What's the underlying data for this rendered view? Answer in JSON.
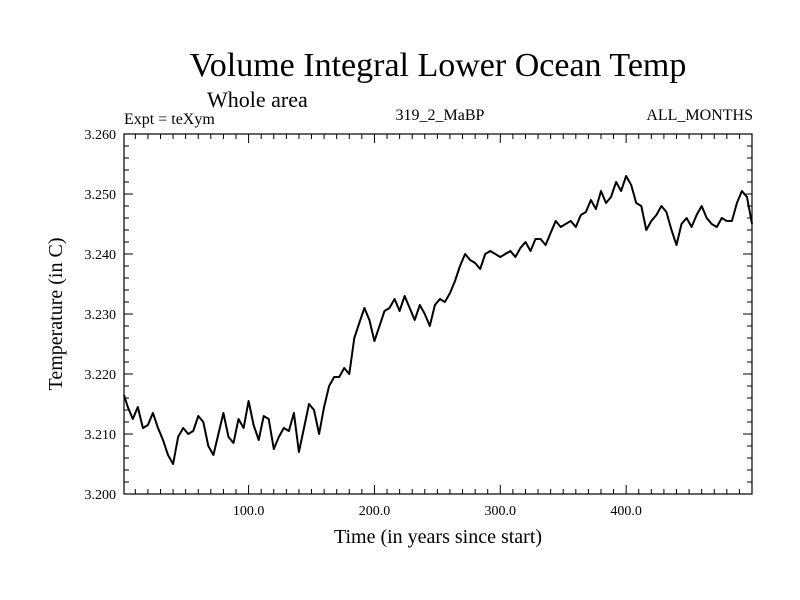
{
  "chart_data": {
    "type": "line",
    "title": "Volume Integral Lower Ocean Temp",
    "subtitle": "Whole area",
    "info_left": "Expt = teXym",
    "info_center": "319_2_MaBP",
    "info_right": "ALL_MONTHS",
    "xlabel": "Time (in years since start)",
    "ylabel": "Temperature (in C)",
    "xlim": [
      1,
      500
    ],
    "ylim": [
      3.2,
      3.26
    ],
    "xticks": [
      100,
      200,
      300,
      400
    ],
    "xtick_labels": [
      "100.0",
      "200.0",
      "300.0",
      "400.0"
    ],
    "yticks": [
      3.2,
      3.21,
      3.22,
      3.23,
      3.24,
      3.25,
      3.26
    ],
    "ytick_labels": [
      "3.200",
      "3.210",
      "3.220",
      "3.230",
      "3.240",
      "3.250",
      "3.260"
    ],
    "grid": false,
    "line_color": "#000000",
    "series": [
      {
        "x": [
          1,
          4,
          8,
          12,
          16,
          20,
          24,
          28,
          32,
          36,
          40,
          44,
          48,
          52,
          56,
          60,
          64,
          68,
          72,
          76,
          80,
          84,
          88,
          92,
          96,
          100,
          104,
          108,
          112,
          116,
          120,
          124,
          128,
          132,
          136,
          140,
          144,
          148,
          152,
          156,
          160,
          164,
          168,
          172,
          176,
          180,
          184,
          188,
          192,
          196,
          200,
          204,
          208,
          212,
          216,
          220,
          224,
          228,
          232,
          236,
          240,
          244,
          248,
          252,
          256,
          260,
          264,
          268,
          272,
          276,
          280,
          284,
          288,
          292,
          296,
          300,
          304,
          308,
          312,
          316,
          320,
          324,
          328,
          332,
          336,
          340,
          344,
          348,
          352,
          356,
          360,
          364,
          368,
          372,
          376,
          380,
          384,
          388,
          392,
          396,
          400,
          404,
          408,
          412,
          416,
          420,
          424,
          428,
          432,
          436,
          440,
          444,
          448,
          452,
          456,
          460,
          464,
          468,
          472,
          476,
          480,
          484,
          488,
          492,
          496,
          500
        ],
        "values": [
          3.2165,
          3.2145,
          3.2125,
          3.2145,
          3.211,
          3.2115,
          3.2135,
          3.211,
          3.209,
          3.2065,
          3.205,
          3.2095,
          3.211,
          3.21,
          3.2105,
          3.213,
          3.212,
          3.208,
          3.2065,
          3.21,
          3.2135,
          3.2095,
          3.2085,
          3.2125,
          3.211,
          3.2155,
          3.2115,
          3.209,
          3.213,
          3.2125,
          3.2075,
          3.2095,
          3.211,
          3.2105,
          3.2135,
          3.207,
          3.211,
          3.215,
          3.214,
          3.21,
          3.2145,
          3.218,
          3.2195,
          3.2195,
          3.221,
          3.22,
          3.226,
          3.2285,
          3.231,
          3.229,
          3.2255,
          3.228,
          3.2305,
          3.231,
          3.2325,
          3.2305,
          3.233,
          3.231,
          3.229,
          3.2315,
          3.23,
          3.228,
          3.2315,
          3.2325,
          3.232,
          3.2335,
          3.2355,
          3.238,
          3.24,
          3.239,
          3.2385,
          3.2375,
          3.24,
          3.2405,
          3.24,
          3.2395,
          3.24,
          3.2405,
          3.2395,
          3.241,
          3.242,
          3.2405,
          3.2425,
          3.2425,
          3.2415,
          3.2435,
          3.2455,
          3.2445,
          3.245,
          3.2455,
          3.2445,
          3.2465,
          3.247,
          3.249,
          3.2475,
          3.2505,
          3.2485,
          3.2495,
          3.252,
          3.2505,
          3.253,
          3.2515,
          3.2485,
          3.248,
          3.244,
          3.2455,
          3.2465,
          3.248,
          3.247,
          3.244,
          3.2415,
          3.245,
          3.246,
          3.2445,
          3.2465,
          3.248,
          3.246,
          3.245,
          3.2445,
          3.246,
          3.2455,
          3.2455,
          3.2485,
          3.2505,
          3.2495,
          3.245
        ]
      }
    ]
  }
}
